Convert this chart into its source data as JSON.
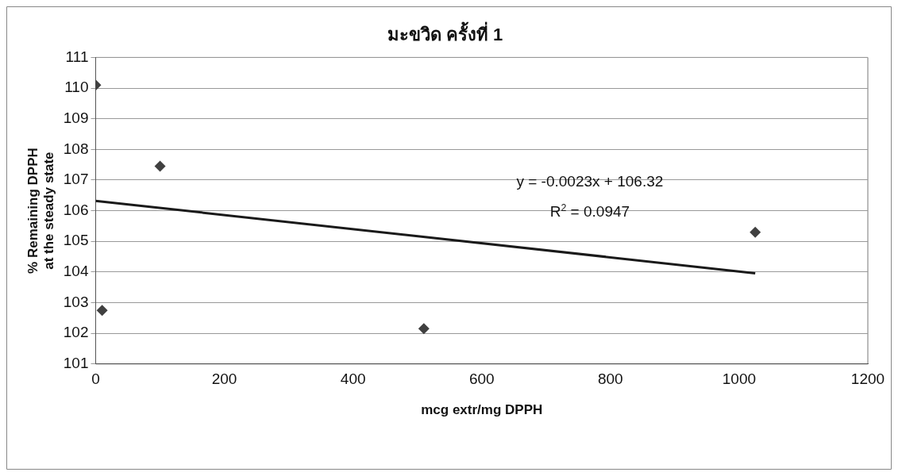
{
  "chart_data": {
    "type": "scatter",
    "title": "มะขวิด ครั้งที่ 1",
    "xlabel": "mcg extr/mg DPPH",
    "ylabel": "% Remaining DPPH at the steady state",
    "series": [
      {
        "color": "#404040",
        "marker": "diamond",
        "x": [
          0,
          10,
          100,
          510,
          1025
        ],
        "values": [
          110.1,
          102.75,
          107.45,
          102.15,
          105.3
        ]
      },
      {
        "type": "line",
        "color": "#1a1a1a",
        "marker": "none",
        "line_style": "solid",
        "x": [
          0,
          1025
        ],
        "values": [
          106.32,
          103.96
        ]
      }
    ],
    "xlim": [
      0,
      1200
    ],
    "xticks": [
      0,
      200,
      400,
      600,
      800,
      1000,
      1200
    ],
    "ylim": [
      101,
      111
    ],
    "yticks": [
      101,
      102,
      103,
      104,
      105,
      106,
      107,
      108,
      109,
      110,
      111
    ],
    "grid": "y",
    "legend": false,
    "annotations": [
      "y = -0.0023x + 106.32",
      "R$^{2}$ = 0.0947"
    ]
  }
}
